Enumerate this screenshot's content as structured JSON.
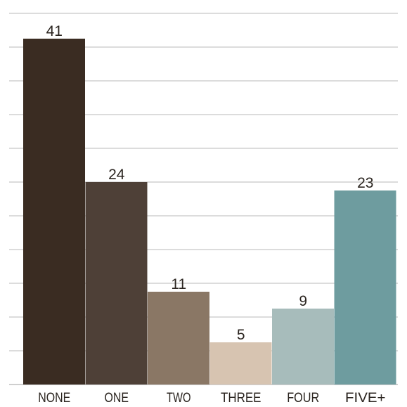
{
  "chart_data": {
    "type": "bar",
    "categories": [
      "NONE",
      "ONE",
      "TWO",
      "THREE",
      "FOUR",
      "FIVE+"
    ],
    "values": [
      41,
      24,
      11,
      5,
      9,
      23
    ],
    "colors": [
      "#3a2c22",
      "#4e4037",
      "#8a7765",
      "#d7c4b1",
      "#a7bcbb",
      "#6e9c9f"
    ],
    "ylim": [
      0,
      44
    ],
    "grid": true,
    "gridline_step": 4
  }
}
